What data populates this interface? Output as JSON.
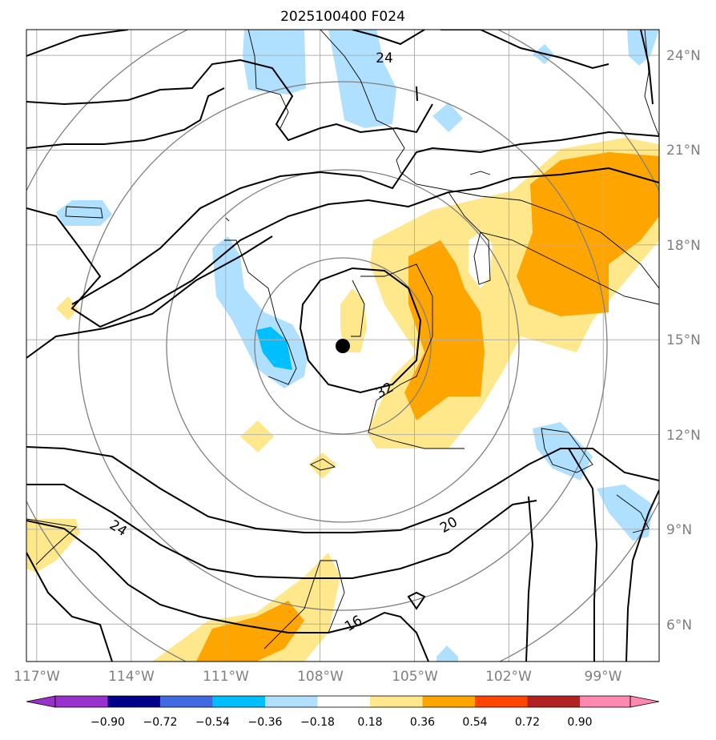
{
  "chart_data": {
    "type": "map",
    "title": "2025100400 F024",
    "x_ticks": [
      "117°W",
      "114°W",
      "111°W",
      "108°W",
      "105°W",
      "102°W",
      "99°W"
    ],
    "y_ticks": [
      "24°N",
      "21°N",
      "18°N",
      "15°N",
      "12°N",
      "9°N",
      "6°N"
    ],
    "xlim": [
      -117.4,
      -97.3
    ],
    "ylim": [
      4.9,
      24.9
    ],
    "grid": true,
    "center_marker": {
      "lon": -107.4,
      "lat": 14.8
    },
    "contour_labels": [
      {
        "text": "24",
        "lon": -106.2,
        "lat": 24.0
      },
      {
        "text": "32",
        "lon": -106.2,
        "lat": 13.5
      },
      {
        "text": "24",
        "lon": -114.6,
        "lat": 8.8
      },
      {
        "text": "20",
        "lon": -104.3,
        "lat": 9.1
      },
      {
        "text": "16",
        "lon": -107.0,
        "lat": 6.0
      }
    ],
    "colorbar": {
      "ticks": [
        "−0.90",
        "−0.72",
        "−0.54",
        "−0.36",
        "−0.18",
        "0.18",
        "0.36",
        "0.54",
        "0.72",
        "0.90"
      ],
      "colors": [
        "#9932cc",
        "#00008b",
        "#4169e1",
        "#00bfff",
        "#b0e0ff",
        "#ffffff",
        "#ffe88c",
        "#ffa500",
        "#ff4500",
        "#b22222",
        "#ff88b0"
      ],
      "extend": "both"
    }
  }
}
